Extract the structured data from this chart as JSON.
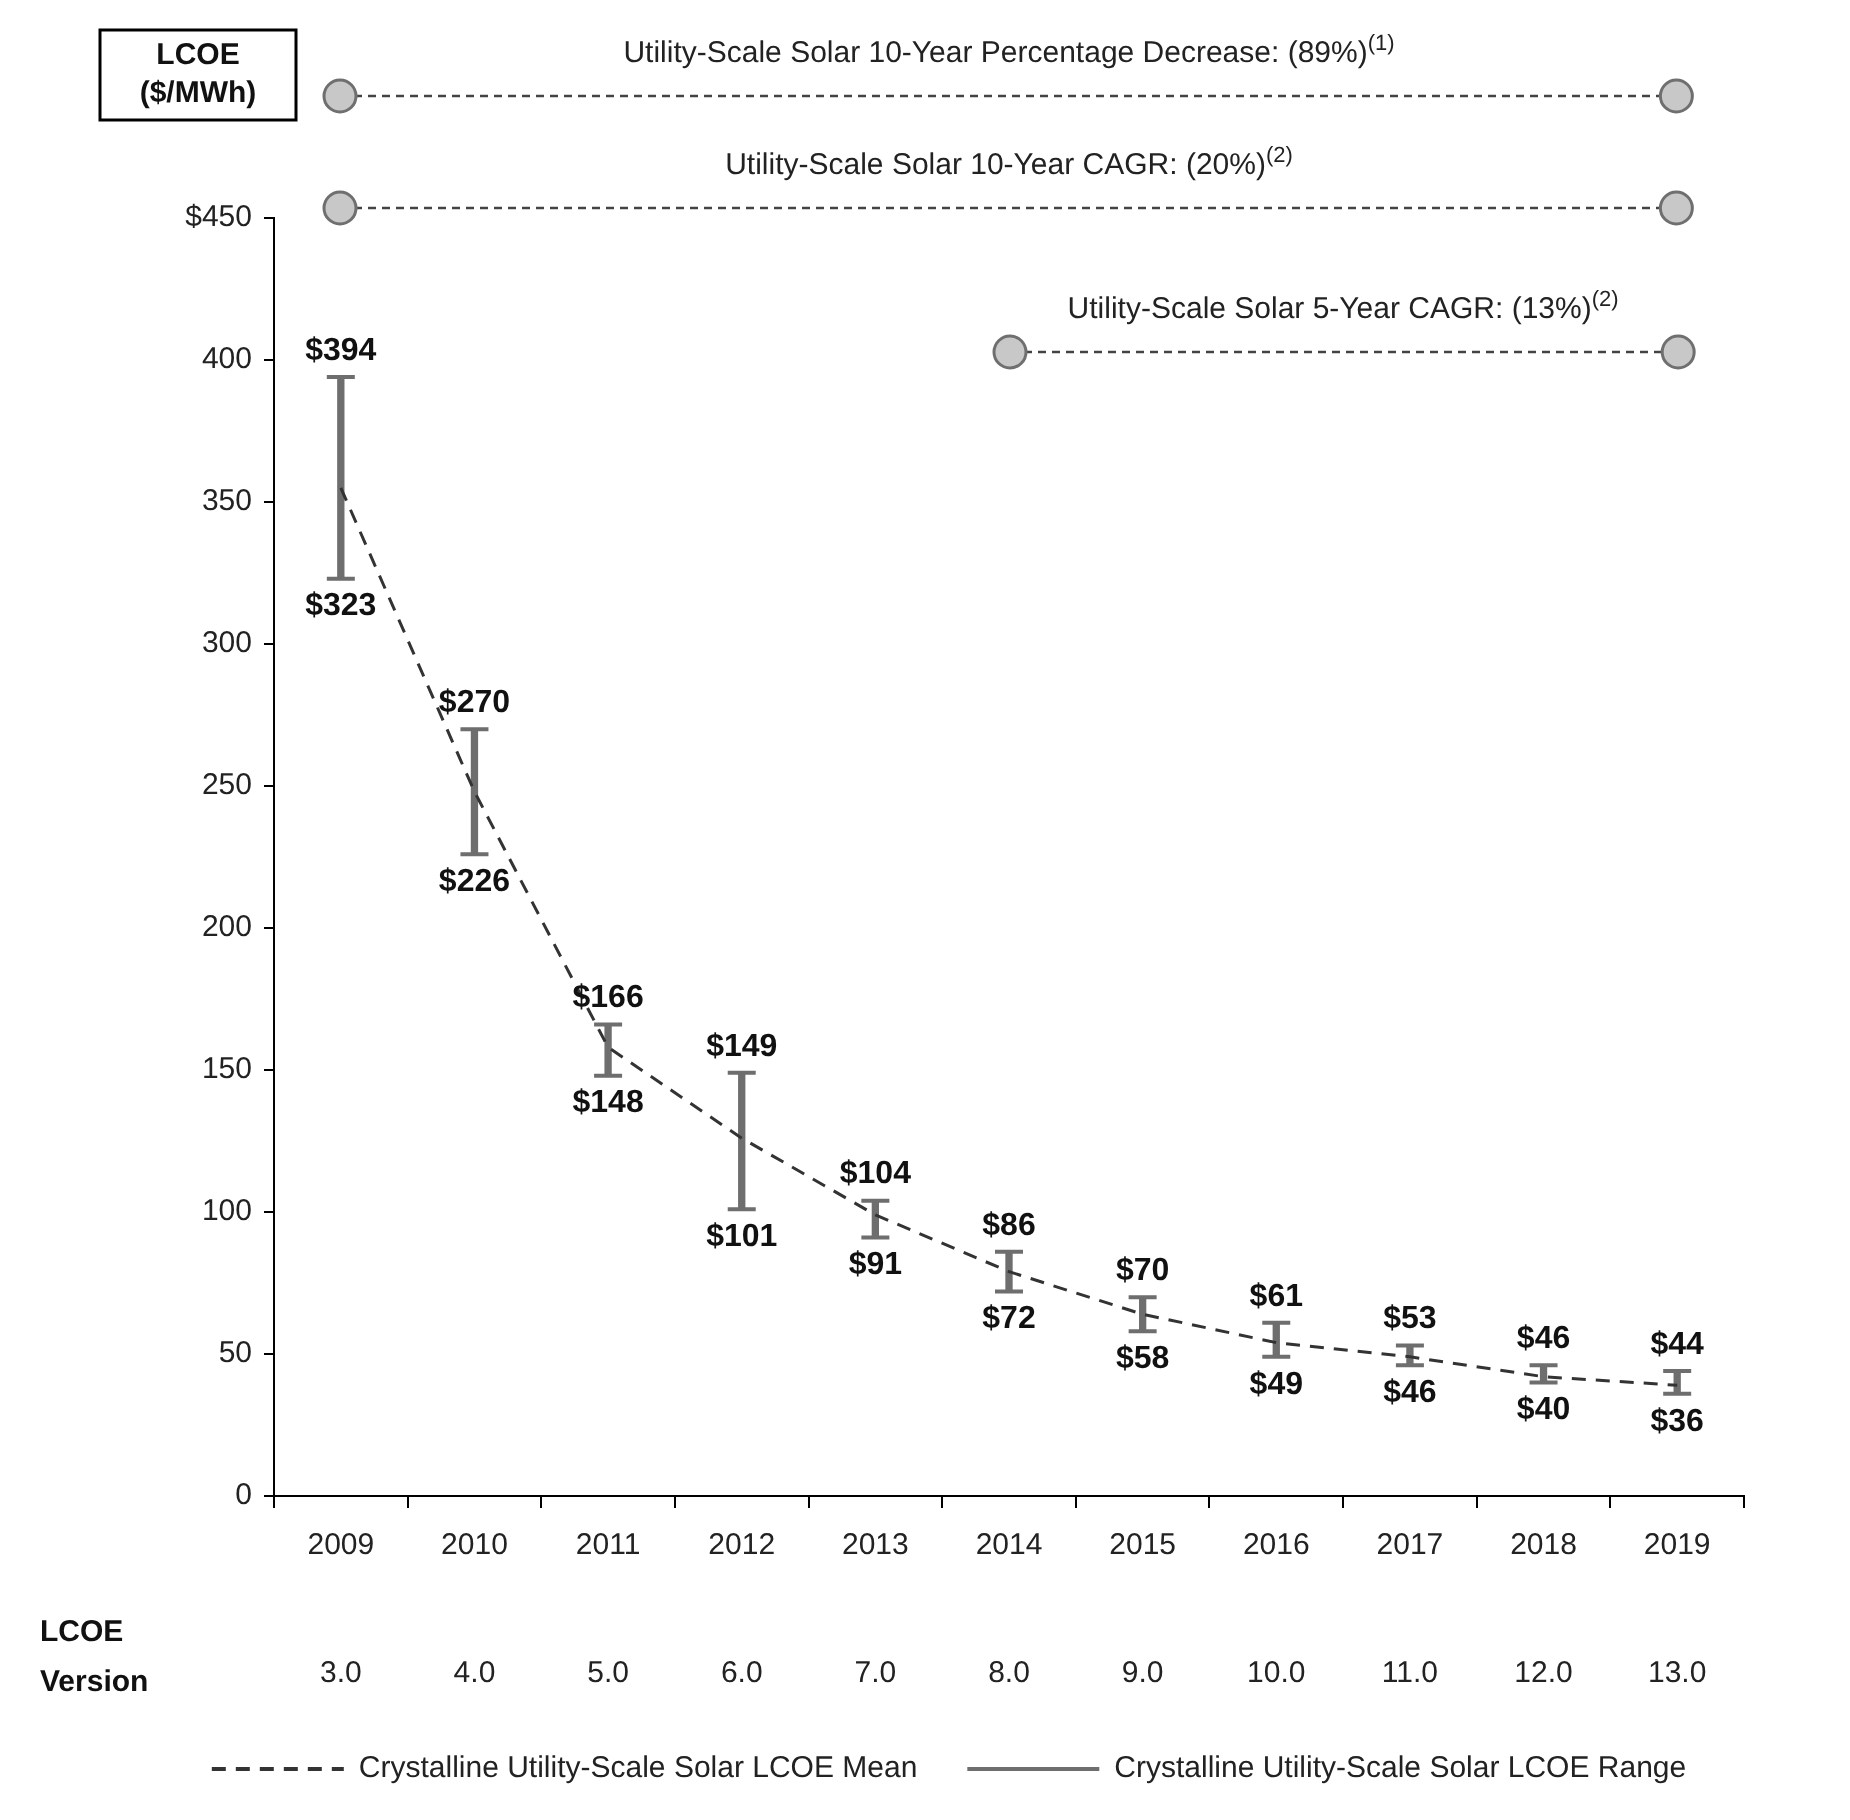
{
  "chart_data": {
    "type": "bar",
    "ylabel": "LCOE ($/MWh)",
    "categories": [
      "2009",
      "2010",
      "2011",
      "2012",
      "2013",
      "2014",
      "2015",
      "2016",
      "2017",
      "2018",
      "2019"
    ],
    "series": [
      {
        "name": "Crystalline Utility-Scale Solar LCOE Mean",
        "type": "line",
        "color": "#333333",
        "line_style": "dashed",
        "values": [
          355,
          248,
          158,
          126,
          99,
          79,
          64,
          54,
          49,
          42,
          39
        ]
      },
      {
        "name": "Crystalline Utility-Scale Solar LCOE Range",
        "color": "#6e6e6e",
        "base": [
          323,
          226,
          148,
          101,
          91,
          72,
          58,
          49,
          46,
          40,
          36
        ],
        "values": [
          71,
          44,
          18,
          48,
          13,
          14,
          12,
          12,
          7,
          6,
          8
        ]
      }
    ],
    "ylim": [
      0,
      450
    ],
    "yticks": [
      0,
      50,
      100,
      150,
      200,
      250,
      300,
      350,
      400,
      {
        "value": 450,
        "label": "$450"
      }
    ],
    "legend": "bottom",
    "annotations": [
      "Utility-Scale Solar 10-Year Percentage Decrease: (89%)$^{(1)}$",
      "Utility-Scale Solar 10-Year CAGR: (20%)$^{(2)}$",
      "Utility-Scale Solar 5-Year CAGR: (13%)$^{(2)}$",
      "LCOE Version",
      "3.0",
      "4.0",
      "5.0",
      "6.0",
      "7.0",
      "8.0",
      "9.0",
      "10.0",
      "11.0",
      "12.0",
      "13.0",
      {
        "text": "$394",
        "x": "2009",
        "y": 394
      },
      {
        "text": "$323",
        "x": "2009",
        "y": 323
      },
      {
        "text": "$270",
        "x": "2010",
        "y": 270
      },
      {
        "text": "$226",
        "x": "2010",
        "y": 226
      },
      {
        "text": "$166",
        "x": "2011",
        "y": 166
      },
      {
        "text": "$148",
        "x": "2011",
        "y": 148
      },
      {
        "text": "$149",
        "x": "2012",
        "y": 149
      },
      {
        "text": "$101",
        "x": "2012",
        "y": 101
      },
      {
        "text": "$104",
        "x": "2013",
        "y": 104
      },
      {
        "text": "$91",
        "x": "2013",
        "y": 91
      },
      {
        "text": "$86",
        "x": "2014",
        "y": 86
      },
      {
        "text": "$72",
        "x": "2014",
        "y": 72
      },
      {
        "text": "$70",
        "x": "2015",
        "y": 70
      },
      {
        "text": "$58",
        "x": "2015",
        "y": 58
      },
      {
        "text": "$61",
        "x": "2016",
        "y": 61
      },
      {
        "text": "$49",
        "x": "2016",
        "y": 49
      },
      {
        "text": "$53",
        "x": "2017",
        "y": 53
      },
      {
        "text": "$46",
        "x": "2017",
        "y": 46
      },
      {
        "text": "$46",
        "x": "2018",
        "y": 46
      },
      {
        "text": "$40",
        "x": "2018",
        "y": 40
      },
      {
        "text": "$44",
        "x": "2019",
        "y": 44
      },
      {
        "text": "$36",
        "x": "2019",
        "y": 36
      }
    ]
  }
}
